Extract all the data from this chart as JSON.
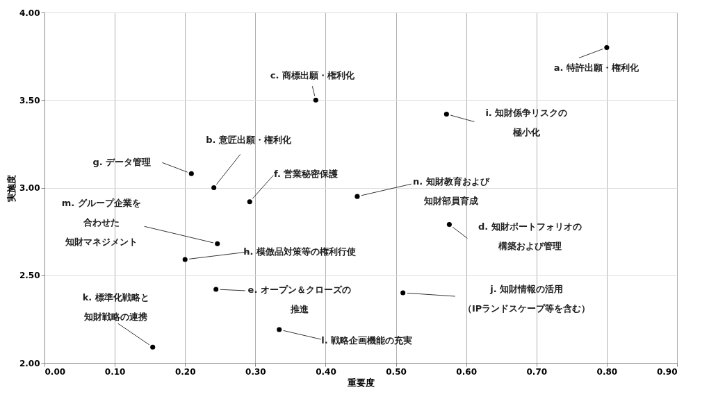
{
  "chart_data": {
    "type": "scatter",
    "xlabel": "重要度",
    "ylabel": "実施度",
    "xlim": [
      0,
      0.9
    ],
    "ylim": [
      2,
      4
    ],
    "xticks": [
      {
        "value": 0,
        "label": "0.00"
      },
      {
        "value": 0.1,
        "label": "0.10"
      },
      {
        "value": 0.2,
        "label": "0.20"
      },
      {
        "value": 0.3,
        "label": "0.30"
      },
      {
        "value": 0.4,
        "label": "0.40"
      },
      {
        "value": 0.5,
        "label": "0.50"
      },
      {
        "value": 0.6,
        "label": "0.60"
      },
      {
        "value": 0.7,
        "label": "0.70"
      },
      {
        "value": 0.8,
        "label": "0.80"
      },
      {
        "value": 0.9,
        "label": "0.90"
      }
    ],
    "yticks": [
      {
        "value": 2,
        "label": "2.00"
      },
      {
        "value": 2.5,
        "label": "2.50"
      },
      {
        "value": 3,
        "label": "3.00"
      },
      {
        "value": 3.5,
        "label": "3.50"
      },
      {
        "value": 4,
        "label": "4.00"
      }
    ],
    "grid": true,
    "marker": "circle",
    "series": [
      {
        "color": "#000000",
        "x": [
          0.8,
          0.241,
          0.386,
          0.576,
          0.244,
          0.292,
          0.209,
          0.2,
          0.572,
          0.51,
          0.154,
          0.334,
          0.246,
          0.445
        ],
        "values": [
          3.8,
          3.0,
          3.5,
          2.79,
          2.42,
          2.92,
          3.08,
          2.59,
          3.42,
          2.4,
          2.09,
          2.19,
          2.68,
          2.95
        ]
      }
    ],
    "annotations": [
      {
        "text": "a. 特許出願・権利化",
        "x": 0.8,
        "y": 3.8
      },
      {
        "text": "b. 意匠出願・権利化",
        "x": 0.241,
        "y": 3.0
      },
      {
        "text": "c. 商標出願・権利化",
        "x": 0.386,
        "y": 3.5
      },
      {
        "text": "d. 知財ポートフォリオの構築および管理",
        "x": 0.576,
        "y": 2.79
      },
      {
        "text": "e. オープン＆クローズの推進",
        "x": 0.244,
        "y": 2.42
      },
      {
        "text": "f. 営業秘密保護",
        "x": 0.292,
        "y": 2.92
      },
      {
        "text": "g. データ管理",
        "x": 0.209,
        "y": 3.08
      },
      {
        "text": "h. 模倣品対策等の権利行使",
        "x": 0.2,
        "y": 2.59
      },
      {
        "text": "i. 知財係争リスクの極小化",
        "x": 0.572,
        "y": 3.42
      },
      {
        "text": "j. 知財情報の活用（IPランドスケープ等を含む）",
        "x": 0.51,
        "y": 2.4
      },
      {
        "text": "k. 標準化戦略と知財戦略の連携",
        "x": 0.154,
        "y": 2.09
      },
      {
        "text": "l. 戦略企画機能の充実",
        "x": 0.334,
        "y": 2.19
      },
      {
        "text": "m. グループ企業を合わせた知財マネジメント",
        "x": 0.246,
        "y": 2.68
      },
      {
        "text": "n. 知財教育および知財部員育成",
        "x": 0.445,
        "y": 2.95
      }
    ]
  }
}
